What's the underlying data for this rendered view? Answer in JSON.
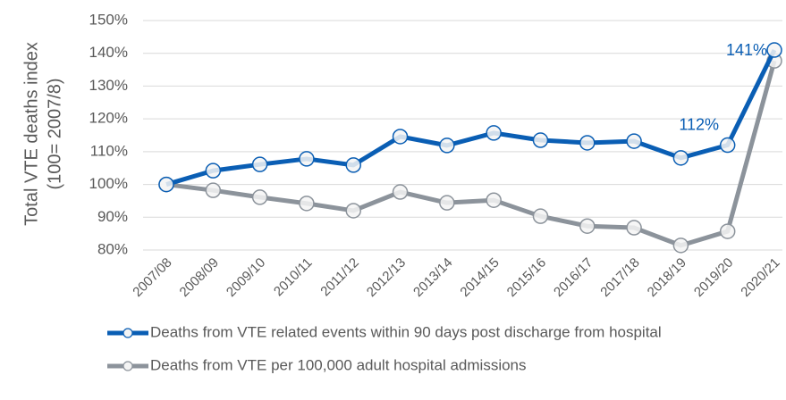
{
  "chart_data": {
    "type": "line",
    "y_label": [
      "Total VTE deaths index",
      "(100= 2007/8)"
    ],
    "categories": [
      "2007/08",
      "2008/09",
      "2009/10",
      "2010/11",
      "2011/12",
      "2012/13",
      "2013/14",
      "2014/15",
      "2015/16",
      "2016/17",
      "2017/18",
      "2018/19",
      "2019/20",
      "2020/21"
    ],
    "series": [
      {
        "name": "Deaths from VTE related events within 90 days post discharge from hospital",
        "color": "#0a5eb4",
        "values": [
          100,
          104.2,
          106.1,
          107.8,
          105.9,
          114.6,
          111.9,
          115.7,
          113.5,
          112.7,
          113.2,
          108.1,
          112,
          141
        ],
        "value_labels": [
          null,
          null,
          null,
          null,
          null,
          null,
          null,
          null,
          null,
          null,
          null,
          null,
          "112%",
          "141%"
        ]
      },
      {
        "name": "Deaths from VTE per 100,000 adult hospital admissions",
        "color": "#8c939b",
        "values": [
          100,
          98.2,
          96.1,
          94.2,
          92,
          97.7,
          94.4,
          95.2,
          90.3,
          87.3,
          86.8,
          81.4,
          85.7,
          137.7
        ]
      }
    ],
    "ylim": [
      80,
      150
    ],
    "yticks": [
      {
        "value": 80,
        "label": "80%"
      },
      {
        "value": 90,
        "label": "90%"
      },
      {
        "value": 100,
        "label": "100%"
      },
      {
        "value": 110,
        "label": "110%"
      },
      {
        "value": 120,
        "label": "120%"
      },
      {
        "value": 130,
        "label": "130%"
      },
      {
        "value": 140,
        "label": "140%"
      },
      {
        "value": 150,
        "label": "150%"
      }
    ],
    "grid": true,
    "legend": "bottom"
  }
}
